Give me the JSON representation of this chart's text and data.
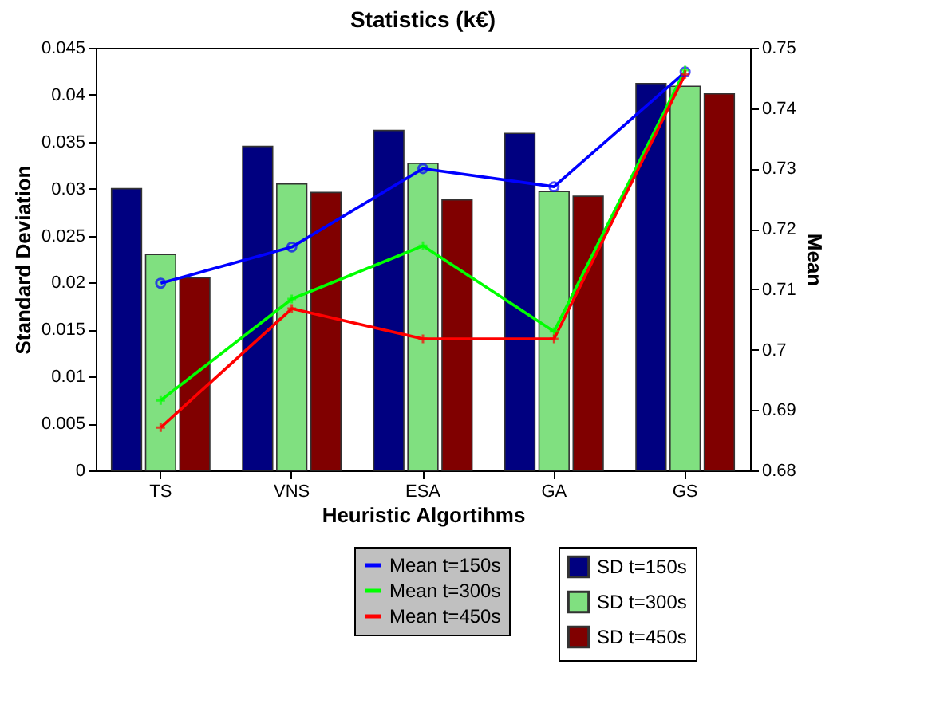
{
  "chart_data": {
    "type": "bar",
    "title": "Statistics (k€)",
    "xlabel": "Heuristic Algortihms",
    "ylabel": "Standard Deviation",
    "y2label": "Mean",
    "categories": [
      "TS",
      "VNS",
      "ESA",
      "GA",
      "GS"
    ],
    "series": [
      {
        "name": "SD t=150s",
        "color": "#000080",
        "values": [
          0.03,
          0.0345,
          0.0362,
          0.0359,
          0.0412
        ]
      },
      {
        "name": "SD t=300s",
        "color": "#80e080",
        "values": [
          0.023,
          0.0305,
          0.0327,
          0.0297,
          0.0409
        ]
      },
      {
        "name": "SD t=450s",
        "color": "#800000",
        "values": [
          0.0205,
          0.0296,
          0.0288,
          0.0292,
          0.0401
        ]
      },
      {
        "name": "Mean t=150s",
        "type": "line",
        "axis": "y2",
        "marker": "circle",
        "color": "#0000ff",
        "values": [
          0.711,
          0.717,
          0.73,
          0.727,
          0.746
        ]
      },
      {
        "name": "Mean t=300s",
        "type": "line",
        "axis": "y2",
        "marker": "cross",
        "color": "#00ff00",
        "values": [
          0.6916,
          0.7084,
          0.7172,
          0.703,
          0.7463
        ]
      },
      {
        "name": "Mean t=450s",
        "type": "line",
        "axis": "y2",
        "marker": "cross",
        "color": "#ff0000",
        "values": [
          0.6871,
          0.7068,
          0.7018,
          0.7018,
          0.7456
        ]
      }
    ],
    "ylim": [
      0,
      0.045
    ],
    "yticks": [
      0,
      0.005,
      0.01,
      0.015,
      0.02,
      0.025,
      0.03,
      0.035,
      0.04,
      0.045
    ],
    "y2lim": [
      0.68,
      0.75
    ],
    "y2ticks": [
      0.68,
      0.69,
      0.7,
      0.71,
      0.72,
      0.73,
      0.74,
      0.75
    ],
    "legend": "bottom right",
    "grid": false
  }
}
